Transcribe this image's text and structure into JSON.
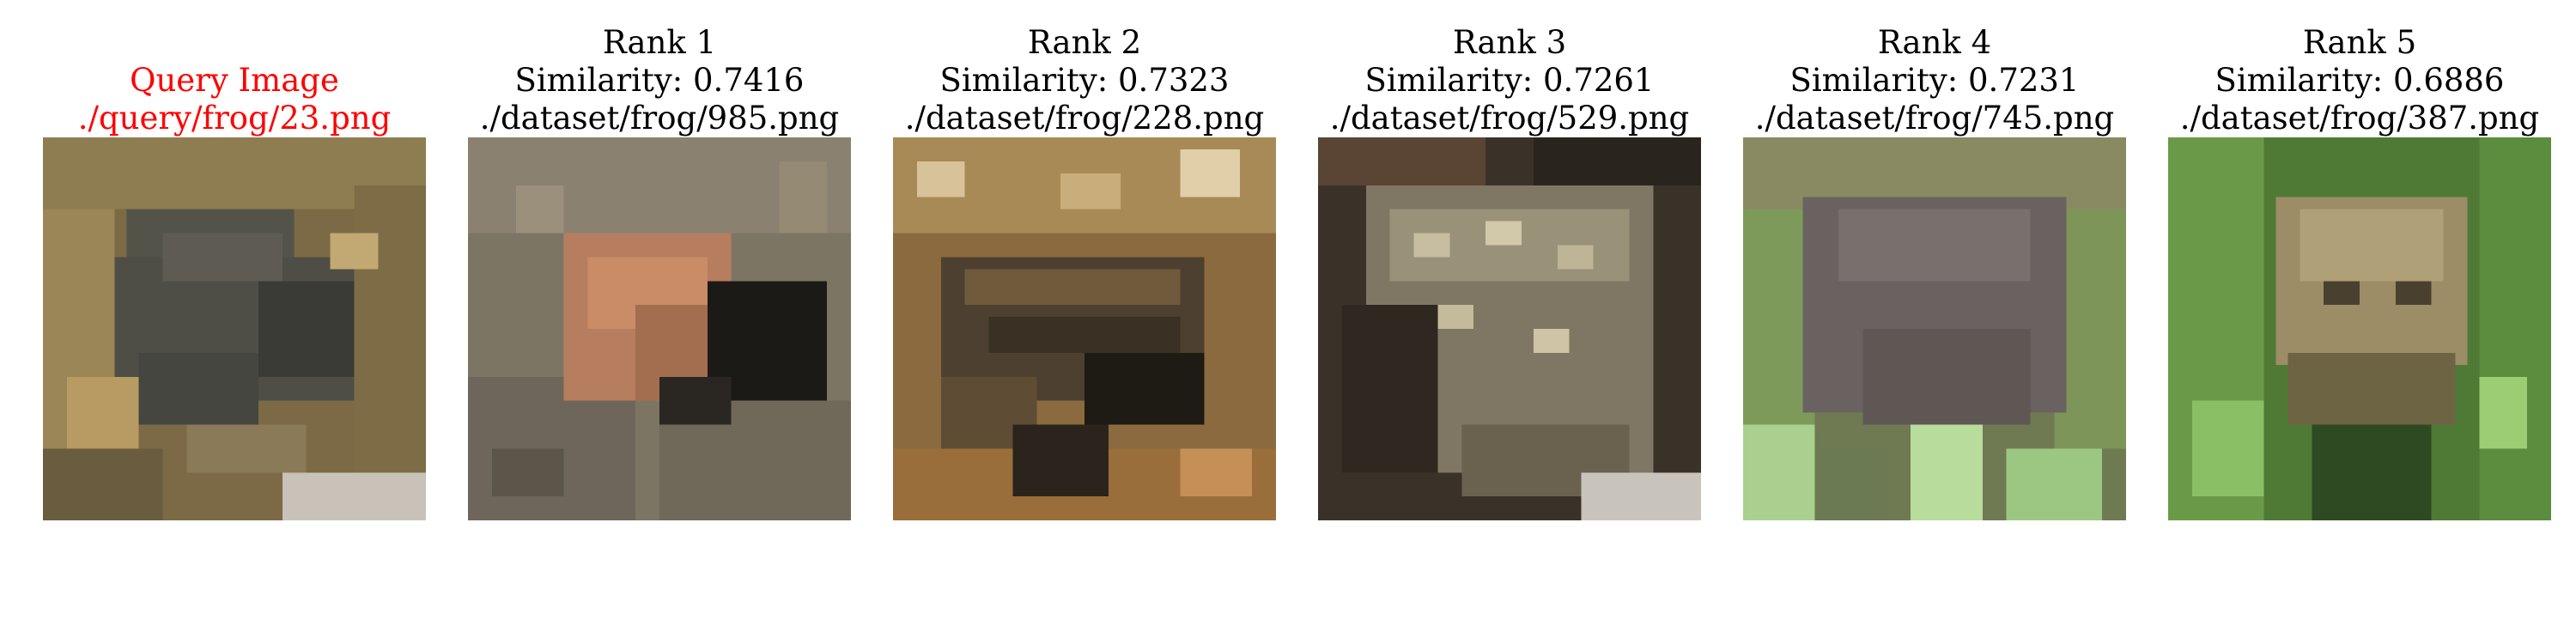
{
  "query": {
    "line1": "Query Image",
    "line2": "./query/frog/23.png",
    "title_color": "#ff0000",
    "image": "pixelated-frog-photo-query"
  },
  "results": [
    {
      "rank_label": "Rank 1",
      "similarity_label": "Similarity: 0.7416",
      "path": "./dataset/frog/985.png",
      "image": "pixelated-frog-photo-rank-1"
    },
    {
      "rank_label": "Rank 2",
      "similarity_label": "Similarity: 0.7323",
      "path": "./dataset/frog/228.png",
      "image": "pixelated-frog-photo-rank-2"
    },
    {
      "rank_label": "Rank 3",
      "similarity_label": "Similarity: 0.7261",
      "path": "./dataset/frog/529.png",
      "image": "pixelated-frog-photo-rank-3"
    },
    {
      "rank_label": "Rank 4",
      "similarity_label": "Similarity: 0.7231",
      "path": "./dataset/frog/745.png",
      "image": "pixelated-frog-photo-rank-4"
    },
    {
      "rank_label": "Rank 5",
      "similarity_label": "Similarity: 0.6886",
      "path": "./dataset/frog/387.png",
      "image": "pixelated-frog-photo-rank-5"
    }
  ]
}
